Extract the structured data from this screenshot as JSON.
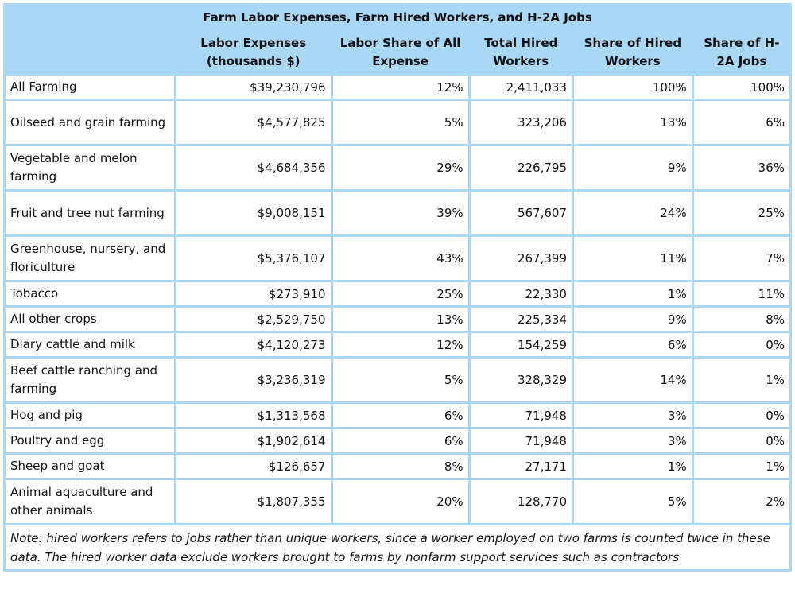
{
  "title": "Farm Labor Expenses, Farm Hired Workers, and H-2A Jobs",
  "columns": [
    "Labor Expenses (thousands $)",
    "Labor Share of All Expense",
    "Total Hired Workers",
    "Share of Hired Workers",
    "Share of H-2A Jobs"
  ],
  "rows": [
    {
      "label": "All Farming",
      "values": [
        "$39,230,796",
        "12%",
        "2,411,033",
        "100%",
        "100%"
      ]
    },
    {
      "label": "Oilseed and grain farming",
      "values": [
        "$4,577,825",
        "5%",
        "323,206",
        "13%",
        "6%"
      ]
    },
    {
      "label": "Vegetable and melon farming",
      "values": [
        "$4,684,356",
        "29%",
        "226,795",
        "9%",
        "36%"
      ]
    },
    {
      "label": "Fruit and tree nut farming",
      "values": [
        "$9,008,151",
        "39%",
        "567,607",
        "24%",
        "25%"
      ]
    },
    {
      "label": "Greenhouse, nursery, and floriculture",
      "values": [
        "$5,376,107",
        "43%",
        "267,399",
        "11%",
        "7%"
      ]
    },
    {
      "label": "Tobacco",
      "values": [
        "$273,910",
        "25%",
        "22,330",
        "1%",
        "11%"
      ]
    },
    {
      "label": "All other crops",
      "values": [
        "$2,529,750",
        "13%",
        "225,334",
        "9%",
        "8%"
      ]
    },
    {
      "label": "Diary cattle and milk",
      "values": [
        "$4,120,273",
        "12%",
        "154,259",
        "6%",
        "0%"
      ]
    },
    {
      "label": "Beef cattle ranching and farming",
      "values": [
        "$3,236,319",
        "5%",
        "328,329",
        "14%",
        "1%"
      ]
    },
    {
      "label": "Hog and pig",
      "values": [
        "$1,313,568",
        "6%",
        "71,948",
        "3%",
        "0%"
      ]
    },
    {
      "label": "Poultry and egg",
      "values": [
        "$1,902,614",
        "6%",
        "71,948",
        "3%",
        "0%"
      ]
    },
    {
      "label": "Sheep and goat",
      "values": [
        "$126,657",
        "8%",
        "27,171",
        "1%",
        "1%"
      ]
    },
    {
      "label": "Animal aquaculture and other animals",
      "values": [
        "$1,807,355",
        "20%",
        "128,770",
        "5%",
        "2%"
      ]
    }
  ],
  "note": "Note: hired workers refers to jobs rather than unique workers, since a worker employed on two farms is counted twice in these data. The hired worker data exclude workers brought to farms by nonfarm support services such as contractors",
  "colors": {
    "header_bg": "#a9d8f7",
    "cell_bg": "#ffffff"
  }
}
